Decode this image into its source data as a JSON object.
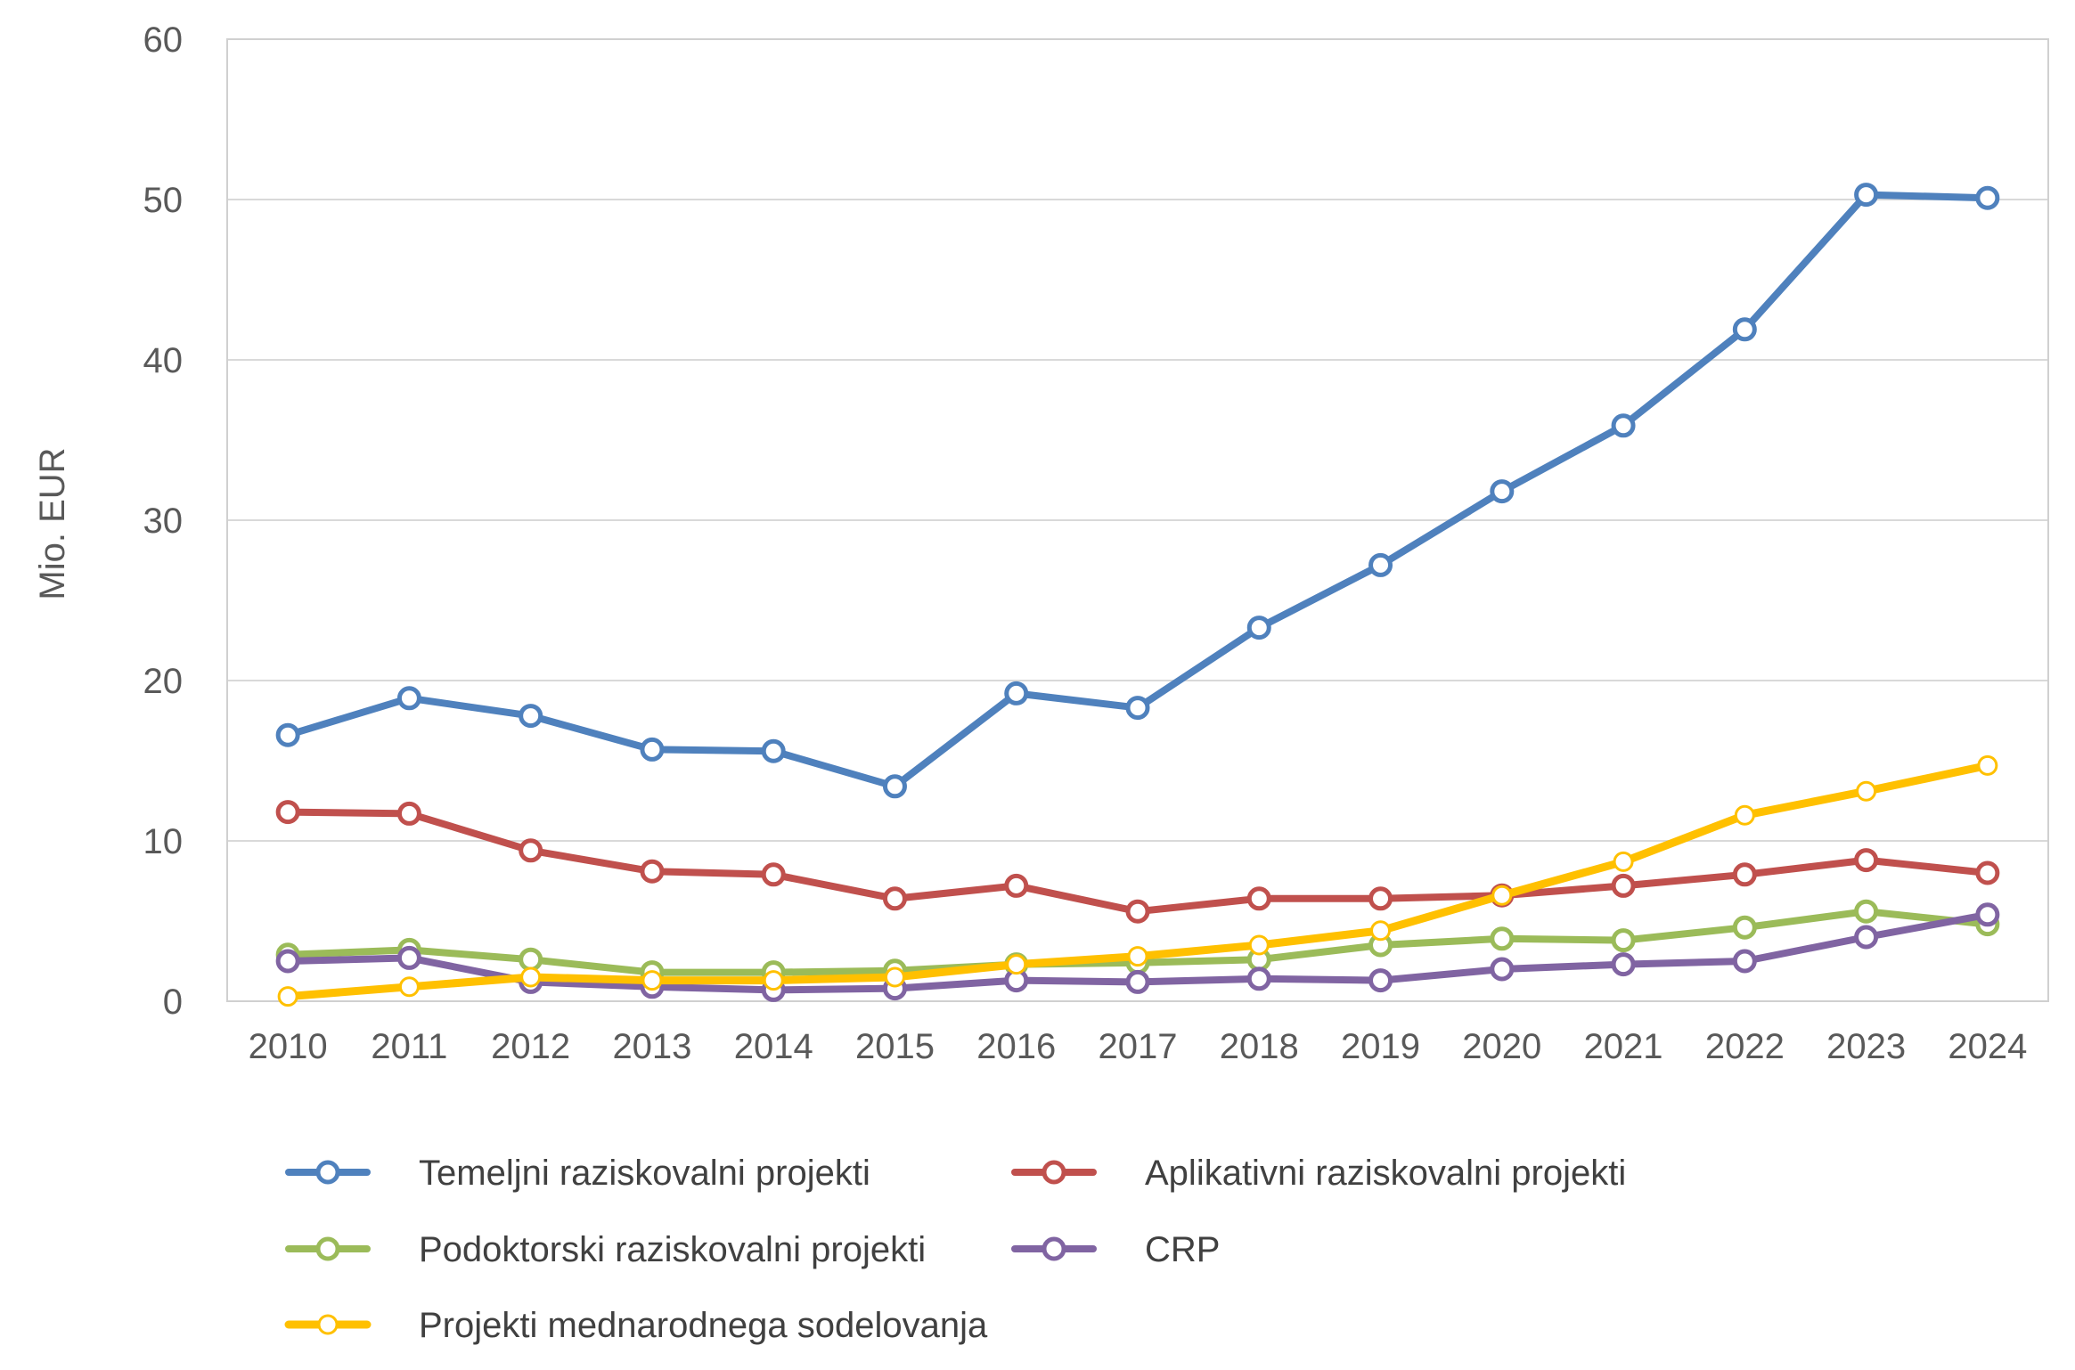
{
  "chart_data": {
    "type": "line",
    "title": "",
    "xlabel": "",
    "ylabel": "Mio. EUR",
    "ylim": [
      0,
      60
    ],
    "yticks": [
      0,
      10,
      20,
      30,
      40,
      50,
      60
    ],
    "grid": "horizontal",
    "legend_position": "bottom",
    "categories": [
      "2010",
      "2011",
      "2012",
      "2013",
      "2014",
      "2015",
      "2016",
      "2017",
      "2018",
      "2019",
      "2020",
      "2021",
      "2022",
      "2023",
      "2024"
    ],
    "series": [
      {
        "name": "Temeljni raziskovalni projekti",
        "color": "#4f81bd",
        "values": [
          16.6,
          18.9,
          17.8,
          15.7,
          15.6,
          13.4,
          19.2,
          18.3,
          23.3,
          27.2,
          31.8,
          35.9,
          41.9,
          50.3,
          50.1
        ]
      },
      {
        "name": "Aplikativni raziskovalni projekti",
        "color": "#c0504d",
        "values": [
          11.8,
          11.7,
          9.4,
          8.1,
          7.9,
          6.4,
          7.2,
          5.6,
          6.4,
          6.4,
          6.6,
          7.2,
          7.9,
          8.8,
          8.0
        ]
      },
      {
        "name": "Podoktorski raziskovalni projekti",
        "color": "#9bbb59",
        "values": [
          2.9,
          3.2,
          2.6,
          1.8,
          1.8,
          1.9,
          2.3,
          2.4,
          2.6,
          3.5,
          3.9,
          3.8,
          4.6,
          5.6,
          4.8
        ]
      },
      {
        "name": "CRP",
        "color": "#8064a2",
        "values": [
          2.5,
          2.7,
          1.2,
          0.9,
          0.7,
          0.8,
          1.3,
          1.2,
          1.4,
          1.3,
          2.0,
          2.3,
          2.5,
          4.0,
          5.4
        ]
      },
      {
        "name": "Projekti mednarodnega sodelovanja",
        "color": "#ffc000",
        "values": [
          0.3,
          0.9,
          1.5,
          1.3,
          1.3,
          1.5,
          2.3,
          2.8,
          3.5,
          4.4,
          6.6,
          8.7,
          11.6,
          13.1,
          14.7
        ]
      }
    ]
  }
}
